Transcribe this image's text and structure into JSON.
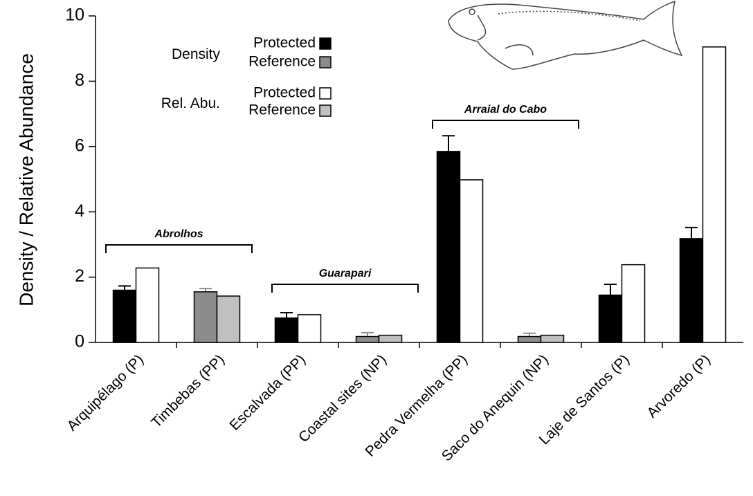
{
  "chart_data": {
    "type": "bar",
    "y_label": "Density / Relative Abundance",
    "categories": [
      "Arquipélago (P)",
      "Timbebas (PP)",
      "Escalvada (PP)",
      "Coastal sites (NP)",
      "Pedra Vermelha (PP)",
      "Saco do Anequin (NP)",
      "Laje de Santos (P)",
      "Arvoredo (P)"
    ],
    "series": [
      {
        "name": "Density",
        "values": [
          1.6,
          1.55,
          0.75,
          0.18,
          5.85,
          0.18,
          1.45,
          3.18
        ],
        "errors": [
          0.13,
          0.1,
          0.16,
          0.12,
          0.48,
          0.1,
          0.33,
          0.34
        ],
        "colors": [
          "#000000",
          "#8c8c8c",
          "#000000",
          "#8c8c8c",
          "#000000",
          "#8c8c8c",
          "#000000",
          "#000000"
        ]
      },
      {
        "name": "Rel. Abu.",
        "values": [
          2.28,
          1.42,
          0.85,
          0.22,
          4.98,
          0.22,
          2.38,
          9.05
        ],
        "colors": [
          "#ffffff",
          "#c0c0c0",
          "#ffffff",
          "#bfbfbf",
          "#ffffff",
          "#bfbfbf",
          "#ffffff",
          "#ffffff"
        ]
      }
    ],
    "legend_statuses": [
      {
        "name": "Protected",
        "colors": [
          "#000000",
          "#ffffff"
        ]
      },
      {
        "name": "Reference",
        "colors": [
          "#8c8c8c",
          "#c0c0c0"
        ]
      }
    ],
    "groups": [
      {
        "label": "Abrolhos"
      },
      {
        "label": "Guarapari"
      },
      {
        "label": "Arraial do Cabo"
      }
    ],
    "ylim": [
      0,
      10
    ],
    "yticks": [
      0,
      2,
      4,
      6,
      8,
      10
    ]
  }
}
